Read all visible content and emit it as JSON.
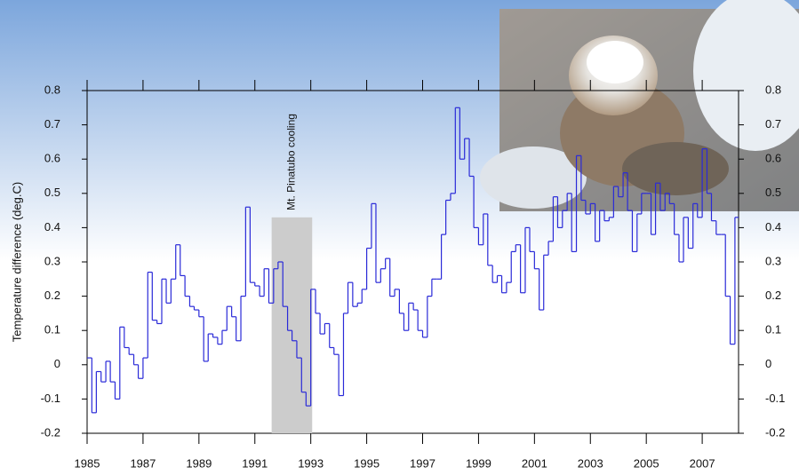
{
  "chart_data": {
    "type": "step",
    "y_label": "Temperature difference (deg.C)",
    "annotation": "Mt. Pinatubo cooling",
    "shade": {
      "x": [
        1991.6,
        1993.05
      ],
      "y": [
        -0.2,
        0.43
      ]
    },
    "color": "#2a2ad8",
    "xlim": [
      1985,
      2008.3
    ],
    "ylim": [
      -0.2,
      0.8
    ],
    "xticks": [
      1985,
      1987,
      1989,
      1991,
      1993,
      1995,
      1997,
      1999,
      2001,
      2003,
      2005,
      2007
    ],
    "yticks": [
      -0.2,
      -0.1,
      0,
      0.1,
      0.2,
      0.3,
      0.4,
      0.5,
      0.6,
      0.7,
      0.8
    ],
    "x": [
      1985,
      1985.17,
      1985.33,
      1985.5,
      1985.67,
      1985.83,
      1986,
      1986.17,
      1986.33,
      1986.5,
      1986.67,
      1986.83,
      1987,
      1987.17,
      1987.33,
      1987.5,
      1987.67,
      1987.83,
      1988,
      1988.17,
      1988.33,
      1988.5,
      1988.67,
      1988.83,
      1989,
      1989.17,
      1989.33,
      1989.5,
      1989.67,
      1989.83,
      1990,
      1990.17,
      1990.33,
      1990.5,
      1990.67,
      1990.83,
      1991,
      1991.17,
      1991.33,
      1991.5,
      1991.67,
      1991.83,
      1992,
      1992.17,
      1992.33,
      1992.5,
      1992.67,
      1992.83,
      1993,
      1993.17,
      1993.33,
      1993.5,
      1993.67,
      1993.83,
      1994,
      1994.17,
      1994.33,
      1994.5,
      1994.67,
      1994.83,
      1995,
      1995.17,
      1995.33,
      1995.5,
      1995.67,
      1995.83,
      1996,
      1996.17,
      1996.33,
      1996.5,
      1996.67,
      1996.83,
      1997,
      1997.17,
      1997.33,
      1997.5,
      1997.67,
      1997.83,
      1998,
      1998.17,
      1998.33,
      1998.5,
      1998.67,
      1998.83,
      1999,
      1999.17,
      1999.33,
      1999.5,
      1999.67,
      1999.83,
      2000,
      2000.17,
      2000.33,
      2000.5,
      2000.67,
      2000.83,
      2001,
      2001.17,
      2001.33,
      2001.5,
      2001.67,
      2001.83,
      2002,
      2002.17,
      2002.33,
      2002.5,
      2002.67,
      2002.83,
      2003,
      2003.17,
      2003.33,
      2003.5,
      2003.67,
      2003.83,
      2004,
      2004.17,
      2004.33,
      2004.5,
      2004.67,
      2004.83,
      2005,
      2005.17,
      2005.33,
      2005.5,
      2005.67,
      2005.83,
      2006,
      2006.17,
      2006.33,
      2006.5,
      2006.67,
      2006.83,
      2007,
      2007.17,
      2007.33,
      2007.5,
      2007.67,
      2007.83,
      2008,
      2008.17
    ],
    "values": [
      0.02,
      -0.14,
      -0.02,
      -0.05,
      0.01,
      -0.05,
      -0.1,
      0.11,
      0.05,
      0.03,
      0.0,
      -0.04,
      0.02,
      0.27,
      0.13,
      0.12,
      0.25,
      0.18,
      0.25,
      0.35,
      0.26,
      0.2,
      0.17,
      0.16,
      0.14,
      0.01,
      0.09,
      0.08,
      0.06,
      0.1,
      0.17,
      0.14,
      0.07,
      0.2,
      0.46,
      0.24,
      0.23,
      0.2,
      0.28,
      0.18,
      0.28,
      0.3,
      0.17,
      0.1,
      0.07,
      0.02,
      -0.08,
      -0.12,
      0.22,
      0.15,
      0.09,
      0.12,
      0.05,
      0.03,
      -0.09,
      0.15,
      0.24,
      0.17,
      0.18,
      0.22,
      0.34,
      0.47,
      0.24,
      0.28,
      0.31,
      0.2,
      0.22,
      0.15,
      0.1,
      0.18,
      0.16,
      0.1,
      0.08,
      0.2,
      0.25,
      0.25,
      0.38,
      0.48,
      0.5,
      0.75,
      0.6,
      0.66,
      0.55,
      0.4,
      0.35,
      0.44,
      0.29,
      0.24,
      0.26,
      0.21,
      0.24,
      0.33,
      0.35,
      0.21,
      0.4,
      0.33,
      0.28,
      0.16,
      0.32,
      0.36,
      0.49,
      0.4,
      0.45,
      0.5,
      0.33,
      0.61,
      0.48,
      0.44,
      0.47,
      0.36,
      0.45,
      0.42,
      0.43,
      0.52,
      0.49,
      0.56,
      0.45,
      0.33,
      0.44,
      0.5,
      0.5,
      0.38,
      0.53,
      0.45,
      0.5,
      0.47,
      0.38,
      0.3,
      0.43,
      0.34,
      0.47,
      0.43,
      0.63,
      0.5,
      0.42,
      0.38,
      0.38,
      0.2,
      0.06,
      0.43
    ]
  }
}
